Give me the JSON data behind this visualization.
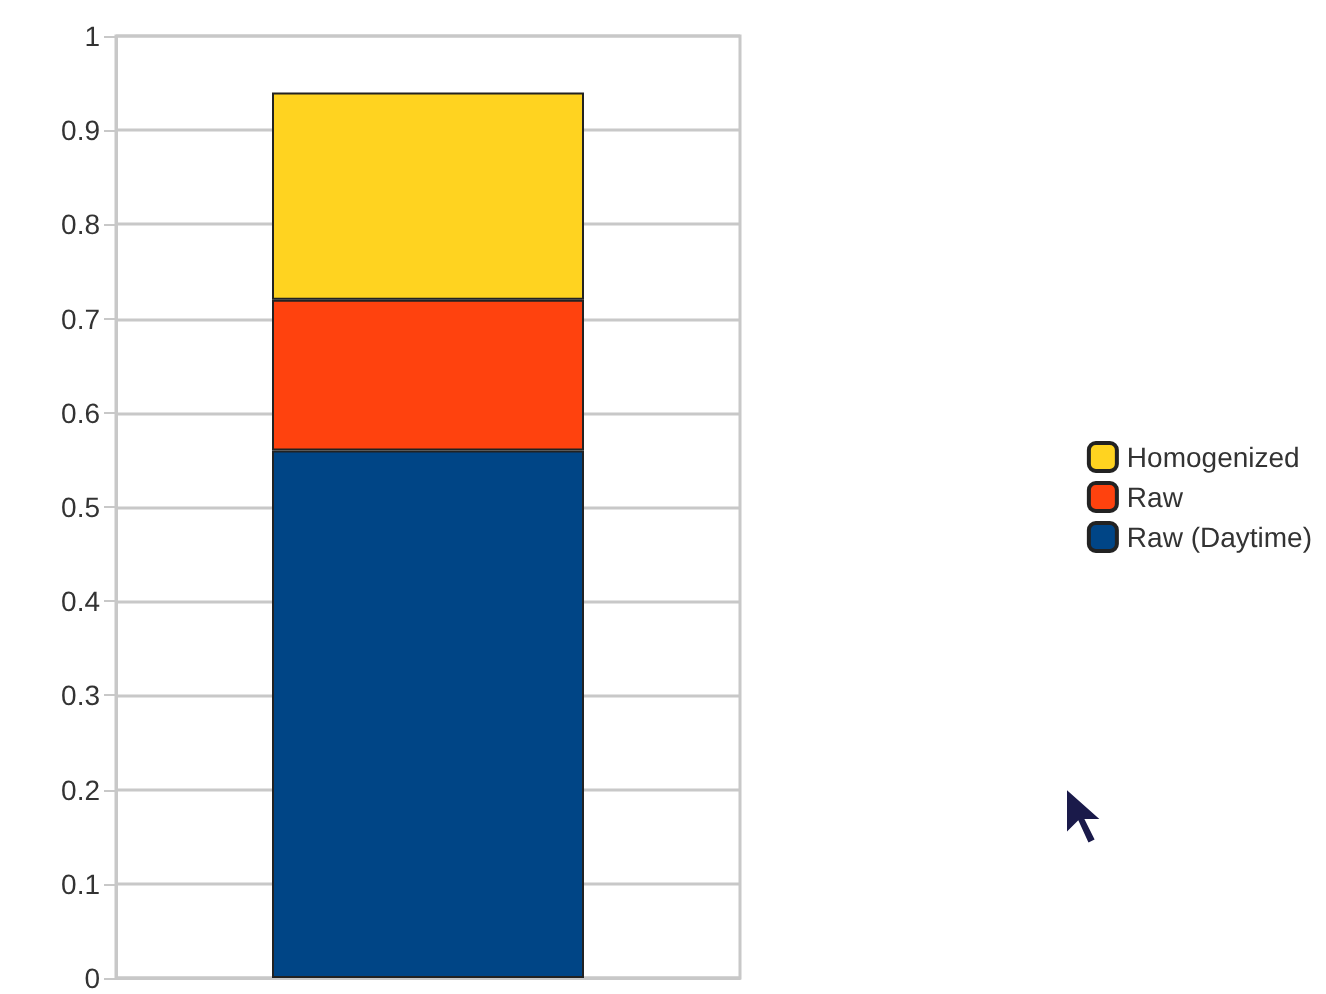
{
  "chart_data": {
    "type": "bar",
    "stacked": true,
    "categories": [
      null
    ],
    "series": [
      {
        "name": "Raw (Daytime)",
        "color": "#004586",
        "values": [
          0.56
        ]
      },
      {
        "name": "Raw",
        "color": "#ff420e",
        "values": [
          0.16
        ]
      },
      {
        "name": "Homogenized",
        "color": "#ffd320",
        "values": [
          0.22
        ]
      }
    ],
    "ylim": [
      0,
      1
    ],
    "yticks": [
      0,
      0.1,
      0.2,
      0.3,
      0.4,
      0.5,
      0.6,
      0.7,
      0.8,
      0.9,
      1
    ],
    "grid": "y",
    "legend": "right"
  }
}
